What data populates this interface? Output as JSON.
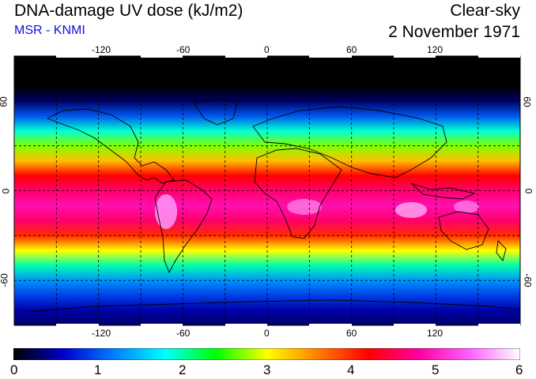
{
  "header": {
    "title": "DNA-damage UV dose (kJ/m2)",
    "subtitle": "MSR - KNMI",
    "condition": "Clear-sky",
    "date": "2 November 1971"
  },
  "map": {
    "projection": "equirectangular",
    "lon_range": [
      -180,
      180
    ],
    "lat_range": [
      -90,
      90
    ],
    "lon_ticks": [
      -120,
      -60,
      0,
      60,
      120
    ],
    "lat_ticks": [
      60,
      0,
      -60
    ],
    "lon_tick_labels": [
      "-120",
      "-60",
      "0",
      "60",
      "120"
    ],
    "lat_tick_labels": [
      "60",
      "0",
      "-60"
    ],
    "gridlines": "dashed, every 30 degrees",
    "field_profile_by_latitude": [
      {
        "lat": 90,
        "dose": 0.0
      },
      {
        "lat": 70,
        "dose": 0.0
      },
      {
        "lat": 60,
        "dose": 0.3
      },
      {
        "lat": 50,
        "dose": 1.0
      },
      {
        "lat": 40,
        "dose": 1.9
      },
      {
        "lat": 30,
        "dose": 2.7
      },
      {
        "lat": 20,
        "dose": 3.3
      },
      {
        "lat": 10,
        "dose": 4.2
      },
      {
        "lat": 0,
        "dose": 4.6
      },
      {
        "lat": -10,
        "dose": 4.9
      },
      {
        "lat": -20,
        "dose": 4.6
      },
      {
        "lat": -30,
        "dose": 4.0
      },
      {
        "lat": -40,
        "dose": 3.0
      },
      {
        "lat": -50,
        "dose": 2.0
      },
      {
        "lat": -60,
        "dose": 1.3
      },
      {
        "lat": -70,
        "dose": 0.9
      },
      {
        "lat": -80,
        "dose": 0.5
      },
      {
        "lat": -90,
        "dose": 0.3
      }
    ]
  },
  "colorbar": {
    "min": 0,
    "max": 6,
    "labels": [
      "0",
      "1",
      "2",
      "3",
      "4",
      "5",
      "6"
    ],
    "stops": [
      "#000000",
      "#0000cc",
      "#0080ff",
      "#00ffff",
      "#00ff00",
      "#ffff00",
      "#ff8000",
      "#ff0000",
      "#ff00a0",
      "#ff60ff",
      "#ffffff"
    ]
  }
}
